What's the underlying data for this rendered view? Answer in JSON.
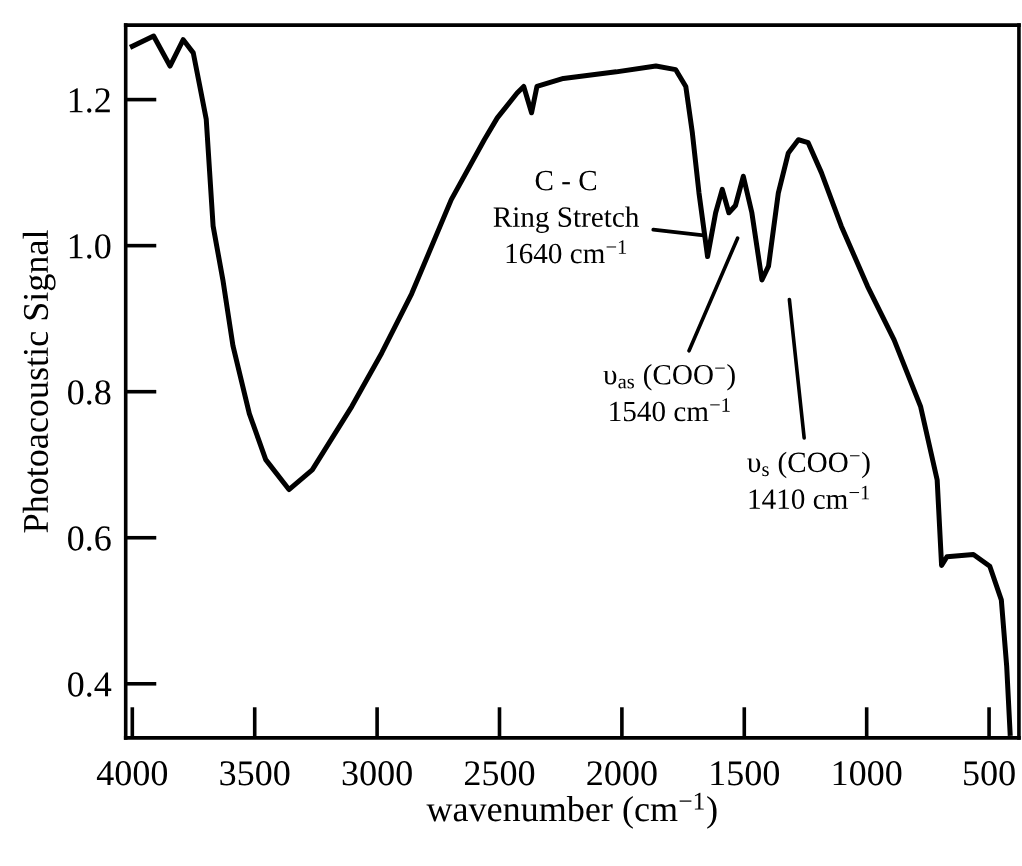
{
  "chart_data": {
    "type": "line",
    "xlabel": "wavenumber (cm$^{−1}$)",
    "ylabel": "Photoacoustic Signal",
    "xlim": [
      4027,
      378
    ],
    "ylim": [
      0.326,
      1.302
    ],
    "xticks": [
      4000,
      3500,
      3000,
      2500,
      2000,
      1500,
      1000,
      500
    ],
    "yticks": [
      0.4,
      0.6,
      0.8,
      {
        "value": 1.0,
        "label": "1.0"
      },
      1.2
    ],
    "grid": false,
    "legend": false,
    "marker": "none",
    "line_style": "solid",
    "series": [
      {
        "color": "#000000",
        "x": [
          4000,
          3913,
          3846,
          3792,
          3751,
          3724,
          3698,
          3670,
          3630,
          3589,
          3522,
          3455,
          3360,
          3265,
          3103,
          2981,
          2859,
          2697,
          2562,
          2509,
          2428,
          2401,
          2369,
          2347,
          2239,
          2023,
          1861,
          1780,
          1739,
          1712,
          1685,
          1650,
          1617,
          1590,
          1563,
          1536,
          1504,
          1469,
          1428,
          1401,
          1361,
          1320,
          1279,
          1239,
          1185,
          1104,
          996,
          888,
          780,
          712,
          694,
          672,
          564,
          497,
          450,
          428,
          414
        ],
        "values": [
          1.273,
          1.287,
          1.246,
          1.282,
          1.264,
          1.218,
          1.173,
          1.027,
          0.953,
          0.863,
          0.77,
          0.707,
          0.666,
          0.693,
          0.78,
          0.853,
          0.934,
          1.063,
          1.145,
          1.175,
          1.209,
          1.218,
          1.182,
          1.218,
          1.229,
          1.238,
          1.246,
          1.241,
          1.218,
          1.154,
          1.072,
          0.985,
          1.045,
          1.077,
          1.045,
          1.055,
          1.095,
          1.045,
          0.953,
          0.972,
          1.072,
          1.127,
          1.145,
          1.141,
          1.1,
          1.027,
          0.944,
          0.871,
          0.78,
          0.679,
          0.562,
          0.574,
          0.577,
          0.561,
          0.515,
          0.424,
          0.332
        ]
      }
    ],
    "annotations": [
      "C - C\nRing Stretch\n1640 cm$^{−1}$",
      "υ$_{as}$ (COO$^{−}$)\n1540 cm$^{−1}$",
      "υ$_{s}$ (COO$^{−}$)\n1410 cm$^{−1}$"
    ]
  }
}
